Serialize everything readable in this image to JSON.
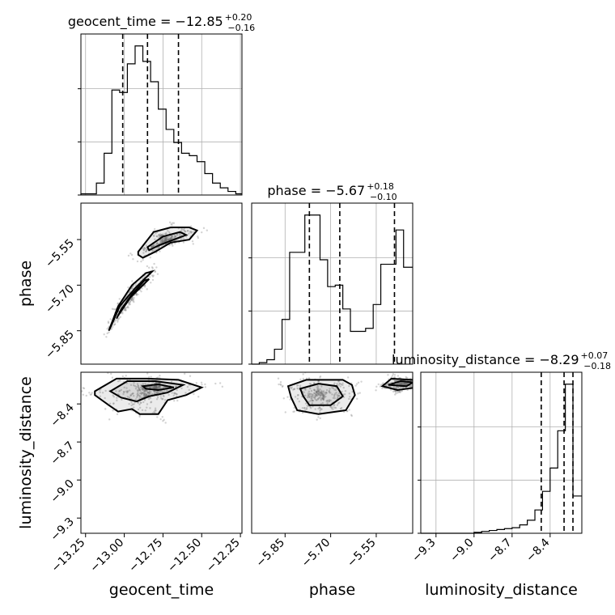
{
  "chart_data": {
    "type": "corner",
    "parameters": [
      {
        "name": "geocent_time",
        "label": "geocent_time",
        "median": -12.85,
        "err_plus": 0.2,
        "err_minus": 0.16,
        "title": {
          "prefix": "geocent_time = −12.85",
          "sup": "+0.20",
          "sub": "−0.16"
        },
        "range": [
          -13.28,
          -12.24
        ],
        "ticks": [
          -13.25,
          -13.0,
          -12.75,
          -12.5,
          -12.25
        ],
        "tick_labels": [
          "−13.25",
          "−13.00",
          "−12.75",
          "−12.50",
          "−12.25"
        ],
        "quantiles": [
          -13.01,
          -12.85,
          -12.65
        ],
        "hist_edges": [
          -13.28,
          -13.23,
          -13.18,
          -13.13,
          -13.08,
          -13.03,
          -12.98,
          -12.93,
          -12.88,
          -12.83,
          -12.78,
          -12.73,
          -12.68,
          -12.63,
          -12.58,
          -12.53,
          -12.48,
          -12.43,
          -12.38,
          -12.33,
          -12.28,
          -12.24
        ],
        "hist_counts": [
          1,
          1,
          10,
          35,
          88,
          86,
          110,
          125,
          112,
          95,
          72,
          55,
          44,
          35,
          33,
          28,
          18,
          10,
          6,
          3,
          1
        ]
      },
      {
        "name": "phase",
        "label": "phase",
        "median": -5.67,
        "err_plus": 0.18,
        "err_minus": 0.1,
        "title": {
          "prefix": "phase = −5.67",
          "sup": "+0.18",
          "sub": "−0.10"
        },
        "range": [
          -5.96,
          -5.43
        ],
        "ticks": [
          -5.85,
          -5.7,
          -5.55
        ],
        "tick_labels": [
          "−5.85",
          "−5.70",
          "−5.55"
        ],
        "quantiles": [
          -5.77,
          -5.67,
          -5.49
        ],
        "hist_edges": [
          -5.96,
          -5.935,
          -5.91,
          -5.885,
          -5.86,
          -5.835,
          -5.81,
          -5.785,
          -5.76,
          -5.735,
          -5.71,
          -5.685,
          -5.66,
          -5.635,
          -5.61,
          -5.585,
          -5.56,
          -5.535,
          -5.51,
          -5.485,
          -5.46,
          -5.43
        ],
        "hist_counts": [
          0,
          1,
          3,
          10,
          30,
          75,
          75,
          100,
          100,
          70,
          52,
          53,
          37,
          22,
          22,
          24,
          40,
          67,
          67,
          90,
          65
        ]
      },
      {
        "name": "luminosity_distance",
        "label": "luminosity_distance",
        "median": -8.29,
        "err_plus": 0.07,
        "err_minus": 0.18,
        "title": {
          "prefix": "luminosity_distance = −8.29",
          "sup": "+0.07",
          "sub": "−0.18"
        },
        "range": [
          -9.42,
          -8.15
        ],
        "ticks": [
          -9.3,
          -9.0,
          -8.7,
          -8.4
        ],
        "tick_labels": [
          "−9.3",
          "−9.0",
          "−8.7",
          "−8.4"
        ],
        "quantiles": [
          -8.47,
          -8.29,
          -8.22
        ],
        "hist_edges": [
          -9.42,
          -9.36,
          -9.3,
          -9.24,
          -9.18,
          -9.12,
          -9.06,
          -9.0,
          -8.94,
          -8.88,
          -8.82,
          -8.76,
          -8.7,
          -8.64,
          -8.58,
          -8.52,
          -8.46,
          -8.4,
          -8.34,
          -8.28,
          -8.22,
          -8.15
        ],
        "hist_counts": [
          0,
          0,
          0,
          0,
          0,
          0,
          0,
          1,
          2,
          3,
          4,
          5,
          6,
          9,
          14,
          25,
          45,
          70,
          110,
          160,
          40
        ]
      }
    ],
    "pairs": [
      {
        "x": "geocent_time",
        "y": "phase",
        "contours": [
          [
            [
              -13.09,
              -5.84
            ],
            [
              -13.03,
              -5.77
            ],
            [
              -12.93,
              -5.71
            ],
            [
              -12.85,
              -5.67
            ],
            [
              -12.82,
              -5.655
            ],
            [
              -12.86,
              -5.66
            ],
            [
              -12.95,
              -5.7
            ],
            [
              -13.04,
              -5.77
            ],
            [
              -13.1,
              -5.85
            ]
          ],
          [
            [
              -13.04,
              -5.8
            ],
            [
              -12.96,
              -5.74
            ],
            [
              -12.88,
              -5.7
            ],
            [
              -12.84,
              -5.68
            ],
            [
              -12.87,
              -5.685
            ],
            [
              -12.95,
              -5.73
            ],
            [
              -13.02,
              -5.78
            ],
            [
              -13.05,
              -5.81
            ]
          ],
          [
            [
              -12.91,
              -5.59
            ],
            [
              -12.81,
              -5.525
            ],
            [
              -12.7,
              -5.51
            ],
            [
              -12.58,
              -5.51
            ],
            [
              -12.53,
              -5.52
            ],
            [
              -12.58,
              -5.55
            ],
            [
              -12.7,
              -5.56
            ],
            [
              -12.8,
              -5.59
            ],
            [
              -12.88,
              -5.61
            ],
            [
              -12.91,
              -5.6
            ]
          ],
          [
            [
              -12.85,
              -5.575
            ],
            [
              -12.75,
              -5.54
            ],
            [
              -12.64,
              -5.525
            ],
            [
              -12.6,
              -5.535
            ],
            [
              -12.68,
              -5.55
            ],
            [
              -12.78,
              -5.57
            ],
            [
              -12.84,
              -5.585
            ]
          ]
        ]
      },
      {
        "x": "geocent_time",
        "y": "luminosity_distance",
        "contours": [
          [
            [
              -13.19,
              -8.3
            ],
            [
              -13.05,
              -8.2
            ],
            [
              -12.85,
              -8.2
            ],
            [
              -12.65,
              -8.21
            ],
            [
              -12.5,
              -8.27
            ],
            [
              -12.6,
              -8.33
            ],
            [
              -12.72,
              -8.37
            ],
            [
              -12.78,
              -8.48
            ],
            [
              -12.9,
              -8.48
            ],
            [
              -12.95,
              -8.44
            ],
            [
              -13.04,
              -8.46
            ],
            [
              -13.1,
              -8.41
            ],
            [
              -13.19,
              -8.33
            ]
          ],
          [
            [
              -13.09,
              -8.3
            ],
            [
              -12.98,
              -8.22
            ],
            [
              -12.8,
              -8.22
            ],
            [
              -12.62,
              -8.25
            ],
            [
              -12.72,
              -8.31
            ],
            [
              -12.84,
              -8.34
            ],
            [
              -12.92,
              -8.38
            ],
            [
              -13.02,
              -8.35
            ]
          ],
          [
            [
              -12.88,
              -8.26
            ],
            [
              -12.78,
              -8.245
            ],
            [
              -12.68,
              -8.27
            ],
            [
              -12.78,
              -8.29
            ],
            [
              -12.86,
              -8.28
            ]
          ]
        ]
      },
      {
        "x": "phase",
        "y": "luminosity_distance",
        "contours": [
          [
            [
              -5.84,
              -8.26
            ],
            [
              -5.78,
              -8.21
            ],
            [
              -5.66,
              -8.21
            ],
            [
              -5.63,
              -8.25
            ],
            [
              -5.62,
              -8.33
            ],
            [
              -5.65,
              -8.45
            ],
            [
              -5.74,
              -8.48
            ],
            [
              -5.81,
              -8.45
            ],
            [
              -5.83,
              -8.35
            ]
          ],
          [
            [
              -5.8,
              -8.28
            ],
            [
              -5.74,
              -8.24
            ],
            [
              -5.68,
              -8.26
            ],
            [
              -5.66,
              -8.34
            ],
            [
              -5.7,
              -8.41
            ],
            [
              -5.77,
              -8.41
            ],
            [
              -5.79,
              -8.34
            ]
          ],
          [
            [
              -5.53,
              -8.26
            ],
            [
              -5.5,
              -8.2
            ],
            [
              -5.43,
              -8.21
            ],
            [
              -5.42,
              -8.27
            ],
            [
              -5.48,
              -8.29
            ]
          ],
          [
            [
              -5.51,
              -8.25
            ],
            [
              -5.47,
              -8.22
            ],
            [
              -5.43,
              -8.23
            ],
            [
              -5.45,
              -8.26
            ]
          ]
        ]
      }
    ]
  }
}
